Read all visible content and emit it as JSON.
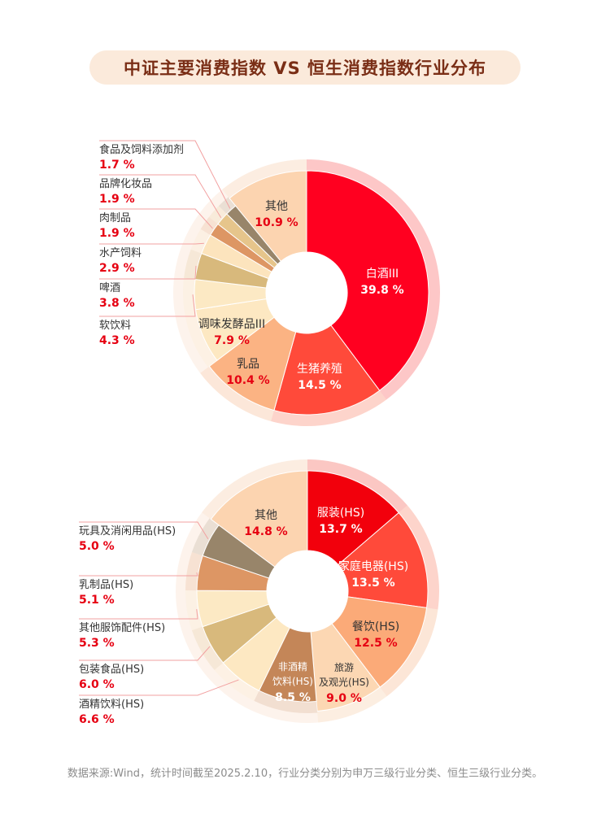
{
  "title": "中证主要消费指数 VS 恒生消费指数行业分布",
  "footer": "数据来源:Wind，统计时间截至2025.2.10，行业分类分别为申万三级行业分类、恒生三级行业分类。",
  "colors": {
    "title_bg": "#fbeadb",
    "title_text": "#7a2e16",
    "label_name": "#333333",
    "label_pct": "#e60012",
    "leader": "#f2a0a0",
    "footer": "#8c8c8c"
  },
  "chart_data": [
    {
      "type": "pie",
      "subtype": "donut",
      "title": "",
      "unit": "%",
      "slices": [
        {
          "name": "白酒III",
          "value": 39.8,
          "label": "39.8 %",
          "color": "#ff0020",
          "text_color": "#ffffff",
          "label_placement": "inside"
        },
        {
          "name": "生猪养殖",
          "value": 14.5,
          "label": "14.5 %",
          "color": "#ff4a3a",
          "text_color": "#ffffff",
          "label_placement": "inside"
        },
        {
          "name": "乳品",
          "value": 10.4,
          "label": "10.4 %",
          "color": "#fbb383",
          "text_color": "#333333",
          "label_placement": "inside"
        },
        {
          "name": "调味发酵品III",
          "value": 7.9,
          "label": "7.9 %",
          "color": "#fde8c2",
          "text_color": "#333333",
          "label_placement": "inside"
        },
        {
          "name": "软饮料",
          "value": 4.3,
          "label": "4.3 %",
          "color": "#fce9c4",
          "text_color": "#333333",
          "label_placement": "outside"
        },
        {
          "name": "啤酒",
          "value": 3.8,
          "label": "3.8 %",
          "color": "#d8b97c",
          "text_color": "#333333",
          "label_placement": "outside"
        },
        {
          "name": "水产饲料",
          "value": 2.9,
          "label": "2.9 %",
          "color": "#fce4bd",
          "text_color": "#333333",
          "label_placement": "outside"
        },
        {
          "name": "肉制品",
          "value": 1.9,
          "label": "1.9 %",
          "color": "#dd9664",
          "text_color": "#333333",
          "label_placement": "outside"
        },
        {
          "name": "品牌化妆品",
          "value": 1.9,
          "label": "1.9 %",
          "color": "#e6c58b",
          "text_color": "#333333",
          "label_placement": "outside"
        },
        {
          "name": "食品及饲料添加剂",
          "value": 1.7,
          "label": "1.7 %",
          "color": "#98856a",
          "text_color": "#333333",
          "label_placement": "outside"
        },
        {
          "name": "其他",
          "value": 10.9,
          "label": "10.9 %",
          "color": "#fcd4b0",
          "text_color": "#333333",
          "label_placement": "inside"
        }
      ]
    },
    {
      "type": "pie",
      "subtype": "donut",
      "title": "",
      "unit": "%",
      "slices": [
        {
          "name": "服装(HS)",
          "value": 13.7,
          "label": "13.7 %",
          "color": "#f2000c",
          "text_color": "#ffffff",
          "label_placement": "inside"
        },
        {
          "name": "家庭电器(HS)",
          "value": 13.5,
          "label": "13.5 %",
          "color": "#ff4a3a",
          "text_color": "#ffffff",
          "label_placement": "inside"
        },
        {
          "name": "餐饮(HS)",
          "value": 12.5,
          "label": "12.5 %",
          "color": "#fbaa78",
          "text_color": "#333333",
          "label_placement": "inside"
        },
        {
          "name": "旅游及观光(HS)",
          "value": 9.0,
          "label": "9.0 %",
          "color": "#fcd7b3",
          "text_color": "#333333",
          "label_placement": "inside"
        },
        {
          "name": "非酒精饮料(HS)",
          "value": 8.5,
          "label": "8.5 %",
          "color": "#c48658",
          "text_color": "#ffffff",
          "label_placement": "inside"
        },
        {
          "name": "酒精饮料(HS)",
          "value": 6.6,
          "label": "6.6 %",
          "color": "#fde8c2",
          "text_color": "#333333",
          "label_placement": "outside"
        },
        {
          "name": "包装食品(HS)",
          "value": 6.0,
          "label": "6.0 %",
          "color": "#d8b97c",
          "text_color": "#333333",
          "label_placement": "outside"
        },
        {
          "name": "其他服饰配件(HS)",
          "value": 5.3,
          "label": "5.3 %",
          "color": "#fce9c4",
          "text_color": "#333333",
          "label_placement": "outside"
        },
        {
          "name": "乳制品(HS)",
          "value": 5.1,
          "label": "5.1 %",
          "color": "#dd9664",
          "text_color": "#333333",
          "label_placement": "outside"
        },
        {
          "name": "玩具及消闲用品(HS)",
          "value": 5.0,
          "label": "5.0 %",
          "color": "#98856a",
          "text_color": "#333333",
          "label_placement": "outside"
        },
        {
          "name": "其他",
          "value": 14.8,
          "label": "14.8 %",
          "color": "#fcd4b0",
          "text_color": "#333333",
          "label_placement": "inside"
        }
      ]
    }
  ]
}
